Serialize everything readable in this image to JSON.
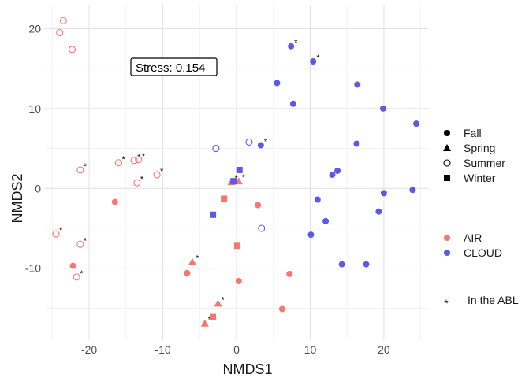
{
  "chart_data": {
    "type": "scatter",
    "xlabel": "NMDS1",
    "ylabel": "NMDS2",
    "xlim": [
      -26,
      26
    ],
    "ylim": [
      -19,
      23
    ],
    "xticks": [
      -20,
      -10,
      0,
      10,
      20
    ],
    "yticks": [
      -10,
      0,
      10,
      20
    ],
    "grid": true,
    "annotation": "Stress:  0.154",
    "colors": {
      "AIR": "#f8766d",
      "CLOUD": "#5b5ae8"
    },
    "legend_shape": {
      "items": [
        {
          "label": "Fall",
          "shape": "circle-filled"
        },
        {
          "label": "Spring",
          "shape": "triangle-filled"
        },
        {
          "label": "Summer",
          "shape": "circle-open"
        },
        {
          "label": "Winter",
          "shape": "square-filled"
        }
      ]
    },
    "legend_color": {
      "items": [
        {
          "label": "AIR",
          "color": "#f8766d"
        },
        {
          "label": "CLOUD",
          "color": "#5b5ae8"
        }
      ]
    },
    "legend_abl": {
      "symbol": "*",
      "label": "In the ABL"
    },
    "points": [
      {
        "x": -23.5,
        "y": 21.0,
        "shape": "circle-open",
        "group": "AIR",
        "abl": false
      },
      {
        "x": -24.0,
        "y": 19.5,
        "shape": "circle-open",
        "group": "AIR",
        "abl": false
      },
      {
        "x": -22.3,
        "y": 17.4,
        "shape": "circle-open",
        "group": "AIR",
        "abl": false
      },
      {
        "x": -21.2,
        "y": 2.3,
        "shape": "circle-open",
        "group": "AIR",
        "abl": true
      },
      {
        "x": -16.0,
        "y": 3.2,
        "shape": "circle-open",
        "group": "AIR",
        "abl": true
      },
      {
        "x": -13.9,
        "y": 3.5,
        "shape": "circle-open",
        "group": "AIR",
        "abl": true
      },
      {
        "x": -13.3,
        "y": 3.6,
        "shape": "circle-open",
        "group": "AIR",
        "abl": true
      },
      {
        "x": -13.5,
        "y": 0.7,
        "shape": "circle-open",
        "group": "AIR",
        "abl": true
      },
      {
        "x": -10.8,
        "y": 1.7,
        "shape": "circle-open",
        "group": "AIR",
        "abl": true
      },
      {
        "x": -24.5,
        "y": -5.7,
        "shape": "circle-open",
        "group": "AIR",
        "abl": true
      },
      {
        "x": -21.2,
        "y": -7.0,
        "shape": "circle-open",
        "group": "AIR",
        "abl": true
      },
      {
        "x": -21.7,
        "y": -11.1,
        "shape": "circle-open",
        "group": "AIR",
        "abl": true
      },
      {
        "x": -16.5,
        "y": -1.7,
        "shape": "circle-filled",
        "group": "AIR",
        "abl": false
      },
      {
        "x": -22.2,
        "y": -9.7,
        "shape": "circle-filled",
        "group": "AIR",
        "abl": false
      },
      {
        "x": -6.7,
        "y": -10.6,
        "shape": "circle-filled",
        "group": "AIR",
        "abl": false
      },
      {
        "x": 2.9,
        "y": -2.1,
        "shape": "circle-filled",
        "group": "AIR",
        "abl": false
      },
      {
        "x": 0.3,
        "y": -11.6,
        "shape": "circle-filled",
        "group": "AIR",
        "abl": false
      },
      {
        "x": 7.2,
        "y": -10.7,
        "shape": "circle-filled",
        "group": "AIR",
        "abl": false
      },
      {
        "x": 6.2,
        "y": -15.1,
        "shape": "circle-filled",
        "group": "AIR",
        "abl": false
      },
      {
        "x": -6.0,
        "y": -9.2,
        "shape": "triangle-filled",
        "group": "AIR",
        "abl": true
      },
      {
        "x": -2.5,
        "y": -14.4,
        "shape": "triangle-filled",
        "group": "AIR",
        "abl": true
      },
      {
        "x": -4.3,
        "y": -16.9,
        "shape": "triangle-filled",
        "group": "AIR",
        "abl": true
      },
      {
        "x": -0.7,
        "y": 0.8,
        "shape": "triangle-filled",
        "group": "AIR",
        "abl": true
      },
      {
        "x": 0.3,
        "y": 0.9,
        "shape": "triangle-filled",
        "group": "AIR",
        "abl": true
      },
      {
        "x": -1.7,
        "y": -1.3,
        "shape": "square-filled",
        "group": "AIR",
        "abl": false
      },
      {
        "x": 0.1,
        "y": -7.2,
        "shape": "square-filled",
        "group": "AIR",
        "abl": false
      },
      {
        "x": -3.2,
        "y": -16.1,
        "shape": "square-filled",
        "group": "AIR",
        "abl": false
      },
      {
        "x": -2.8,
        "y": 5.0,
        "shape": "circle-open",
        "group": "CLOUD",
        "abl": false
      },
      {
        "x": 1.7,
        "y": 5.8,
        "shape": "circle-open",
        "group": "CLOUD",
        "abl": false
      },
      {
        "x": 3.4,
        "y": -5.0,
        "shape": "circle-open",
        "group": "CLOUD",
        "abl": false
      },
      {
        "x": 7.4,
        "y": 17.8,
        "shape": "circle-filled",
        "group": "CLOUD",
        "abl": true
      },
      {
        "x": 10.4,
        "y": 15.9,
        "shape": "circle-filled",
        "group": "CLOUD",
        "abl": true
      },
      {
        "x": 5.5,
        "y": 13.2,
        "shape": "circle-filled",
        "group": "CLOUD",
        "abl": false
      },
      {
        "x": 7.7,
        "y": 10.6,
        "shape": "circle-filled",
        "group": "CLOUD",
        "abl": false
      },
      {
        "x": 3.3,
        "y": 5.4,
        "shape": "circle-filled",
        "group": "CLOUD",
        "abl": true
      },
      {
        "x": 16.4,
        "y": 13.0,
        "shape": "circle-filled",
        "group": "CLOUD",
        "abl": false
      },
      {
        "x": 19.9,
        "y": 10.0,
        "shape": "circle-filled",
        "group": "CLOUD",
        "abl": false
      },
      {
        "x": 24.4,
        "y": 8.1,
        "shape": "circle-filled",
        "group": "CLOUD",
        "abl": false
      },
      {
        "x": 16.3,
        "y": 5.6,
        "shape": "circle-filled",
        "group": "CLOUD",
        "abl": false
      },
      {
        "x": 13.7,
        "y": 2.2,
        "shape": "circle-filled",
        "group": "CLOUD",
        "abl": false
      },
      {
        "x": 13.0,
        "y": 1.7,
        "shape": "circle-filled",
        "group": "CLOUD",
        "abl": false
      },
      {
        "x": 11.0,
        "y": -1.4,
        "shape": "circle-filled",
        "group": "CLOUD",
        "abl": false
      },
      {
        "x": 20.0,
        "y": -0.6,
        "shape": "circle-filled",
        "group": "CLOUD",
        "abl": false
      },
      {
        "x": 23.9,
        "y": -0.2,
        "shape": "circle-filled",
        "group": "CLOUD",
        "abl": false
      },
      {
        "x": 19.3,
        "y": -2.9,
        "shape": "circle-filled",
        "group": "CLOUD",
        "abl": false
      },
      {
        "x": 12.1,
        "y": -4.1,
        "shape": "circle-filled",
        "group": "CLOUD",
        "abl": false
      },
      {
        "x": 10.1,
        "y": -5.8,
        "shape": "circle-filled",
        "group": "CLOUD",
        "abl": false
      },
      {
        "x": 14.3,
        "y": -9.5,
        "shape": "circle-filled",
        "group": "CLOUD",
        "abl": false
      },
      {
        "x": 17.6,
        "y": -9.5,
        "shape": "circle-filled",
        "group": "CLOUD",
        "abl": false
      },
      {
        "x": 0.4,
        "y": 2.3,
        "shape": "square-filled",
        "group": "CLOUD",
        "abl": false
      },
      {
        "x": -0.4,
        "y": 0.9,
        "shape": "square-filled",
        "group": "CLOUD",
        "abl": false
      },
      {
        "x": -3.2,
        "y": -3.3,
        "shape": "square-filled",
        "group": "CLOUD",
        "abl": false
      }
    ]
  }
}
